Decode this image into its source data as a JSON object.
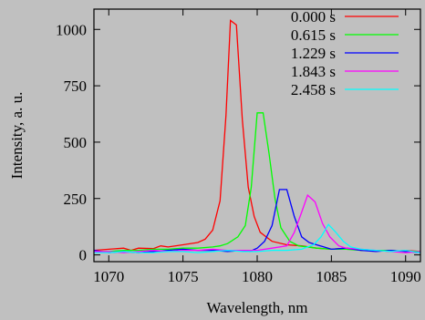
{
  "chart_data": {
    "type": "line",
    "title": "",
    "xlabel": "Wavelength, nm",
    "ylabel": "Intensity, a. u.",
    "xlim": [
      1069,
      1091
    ],
    "ylim": [
      -30,
      1090
    ],
    "x_ticks": [
      1070,
      1075,
      1080,
      1085,
      1090
    ],
    "y_ticks": [
      0,
      250,
      500,
      750,
      1000
    ],
    "grid": false,
    "legend_position": "top-right",
    "series": [
      {
        "name": "0.000 s",
        "color": "#ff0000",
        "points": [
          [
            1069,
            20
          ],
          [
            1070,
            25
          ],
          [
            1071,
            30
          ],
          [
            1071.5,
            20
          ],
          [
            1072,
            30
          ],
          [
            1073,
            28
          ],
          [
            1073.5,
            40
          ],
          [
            1074,
            35
          ],
          [
            1075,
            45
          ],
          [
            1076,
            55
          ],
          [
            1076.5,
            70
          ],
          [
            1077,
            110
          ],
          [
            1077.5,
            240
          ],
          [
            1077.9,
            620
          ],
          [
            1078.2,
            1040
          ],
          [
            1078.6,
            1020
          ],
          [
            1079,
            600
          ],
          [
            1079.4,
            300
          ],
          [
            1079.8,
            170
          ],
          [
            1080.2,
            100
          ],
          [
            1080.7,
            75
          ],
          [
            1081,
            60
          ],
          [
            1082,
            45
          ],
          [
            1083,
            40
          ],
          [
            1084,
            30
          ],
          [
            1085,
            25
          ],
          [
            1086,
            30
          ],
          [
            1087,
            20
          ],
          [
            1088,
            20
          ],
          [
            1089,
            15
          ],
          [
            1090,
            20
          ],
          [
            1091,
            15
          ]
        ]
      },
      {
        "name": "0.615 s",
        "color": "#00ff00",
        "points": [
          [
            1069,
            15
          ],
          [
            1070,
            15
          ],
          [
            1071,
            20
          ],
          [
            1072,
            20
          ],
          [
            1073,
            25
          ],
          [
            1074,
            25
          ],
          [
            1075,
            30
          ],
          [
            1076,
            30
          ],
          [
            1077,
            35
          ],
          [
            1077.5,
            40
          ],
          [
            1078,
            50
          ],
          [
            1078.7,
            80
          ],
          [
            1079.2,
            130
          ],
          [
            1079.6,
            300
          ],
          [
            1080,
            630
          ],
          [
            1080.4,
            630
          ],
          [
            1080.8,
            450
          ],
          [
            1081.2,
            250
          ],
          [
            1081.6,
            120
          ],
          [
            1082.2,
            60
          ],
          [
            1082.8,
            40
          ],
          [
            1084,
            30
          ],
          [
            1085,
            25
          ],
          [
            1086,
            25
          ],
          [
            1087,
            20
          ],
          [
            1088,
            20
          ],
          [
            1089,
            20
          ],
          [
            1090,
            15
          ],
          [
            1091,
            15
          ]
        ]
      },
      {
        "name": "1.229 s",
        "color": "#0000ff",
        "points": [
          [
            1069,
            20
          ],
          [
            1070,
            10
          ],
          [
            1071,
            15
          ],
          [
            1072,
            10
          ],
          [
            1073,
            15
          ],
          [
            1074,
            20
          ],
          [
            1075,
            25
          ],
          [
            1076,
            20
          ],
          [
            1077,
            20
          ],
          [
            1078,
            15
          ],
          [
            1079,
            20
          ],
          [
            1079.5,
            15
          ],
          [
            1080,
            30
          ],
          [
            1080.5,
            60
          ],
          [
            1081,
            130
          ],
          [
            1081.5,
            290
          ],
          [
            1082,
            290
          ],
          [
            1082.5,
            170
          ],
          [
            1083,
            80
          ],
          [
            1083.5,
            55
          ],
          [
            1084,
            45
          ],
          [
            1084.5,
            35
          ],
          [
            1085,
            25
          ],
          [
            1086,
            30
          ],
          [
            1087,
            20
          ],
          [
            1088,
            15
          ],
          [
            1089,
            20
          ],
          [
            1090,
            15
          ],
          [
            1091,
            10
          ]
        ]
      },
      {
        "name": "1.843 s",
        "color": "#ff00ff",
        "points": [
          [
            1069,
            15
          ],
          [
            1070,
            15
          ],
          [
            1071,
            10
          ],
          [
            1072,
            15
          ],
          [
            1073,
            20
          ],
          [
            1074,
            15
          ],
          [
            1075,
            20
          ],
          [
            1076,
            20
          ],
          [
            1077,
            25
          ],
          [
            1078,
            20
          ],
          [
            1079,
            20
          ],
          [
            1080,
            20
          ],
          [
            1081,
            30
          ],
          [
            1082,
            40
          ],
          [
            1082.5,
            100
          ],
          [
            1083,
            190
          ],
          [
            1083.4,
            265
          ],
          [
            1083.9,
            235
          ],
          [
            1084.4,
            140
          ],
          [
            1084.9,
            80
          ],
          [
            1085.5,
            40
          ],
          [
            1086,
            30
          ],
          [
            1087,
            25
          ],
          [
            1088,
            20
          ],
          [
            1089,
            15
          ],
          [
            1090,
            10
          ],
          [
            1091,
            15
          ]
        ]
      },
      {
        "name": "2.458 s",
        "color": "#00ffff",
        "points": [
          [
            1069,
            10
          ],
          [
            1070,
            10
          ],
          [
            1071,
            15
          ],
          [
            1072,
            10
          ],
          [
            1073,
            10
          ],
          [
            1074,
            15
          ],
          [
            1075,
            15
          ],
          [
            1076,
            10
          ],
          [
            1077,
            15
          ],
          [
            1078,
            20
          ],
          [
            1079,
            15
          ],
          [
            1080,
            15
          ],
          [
            1081,
            20
          ],
          [
            1082,
            20
          ],
          [
            1083,
            25
          ],
          [
            1083.8,
            45
          ],
          [
            1084.3,
            80
          ],
          [
            1084.8,
            135
          ],
          [
            1085.3,
            100
          ],
          [
            1085.8,
            60
          ],
          [
            1086.3,
            35
          ],
          [
            1087,
            25
          ],
          [
            1088,
            20
          ],
          [
            1089,
            15
          ],
          [
            1090,
            20
          ],
          [
            1091,
            10
          ]
        ]
      }
    ]
  }
}
